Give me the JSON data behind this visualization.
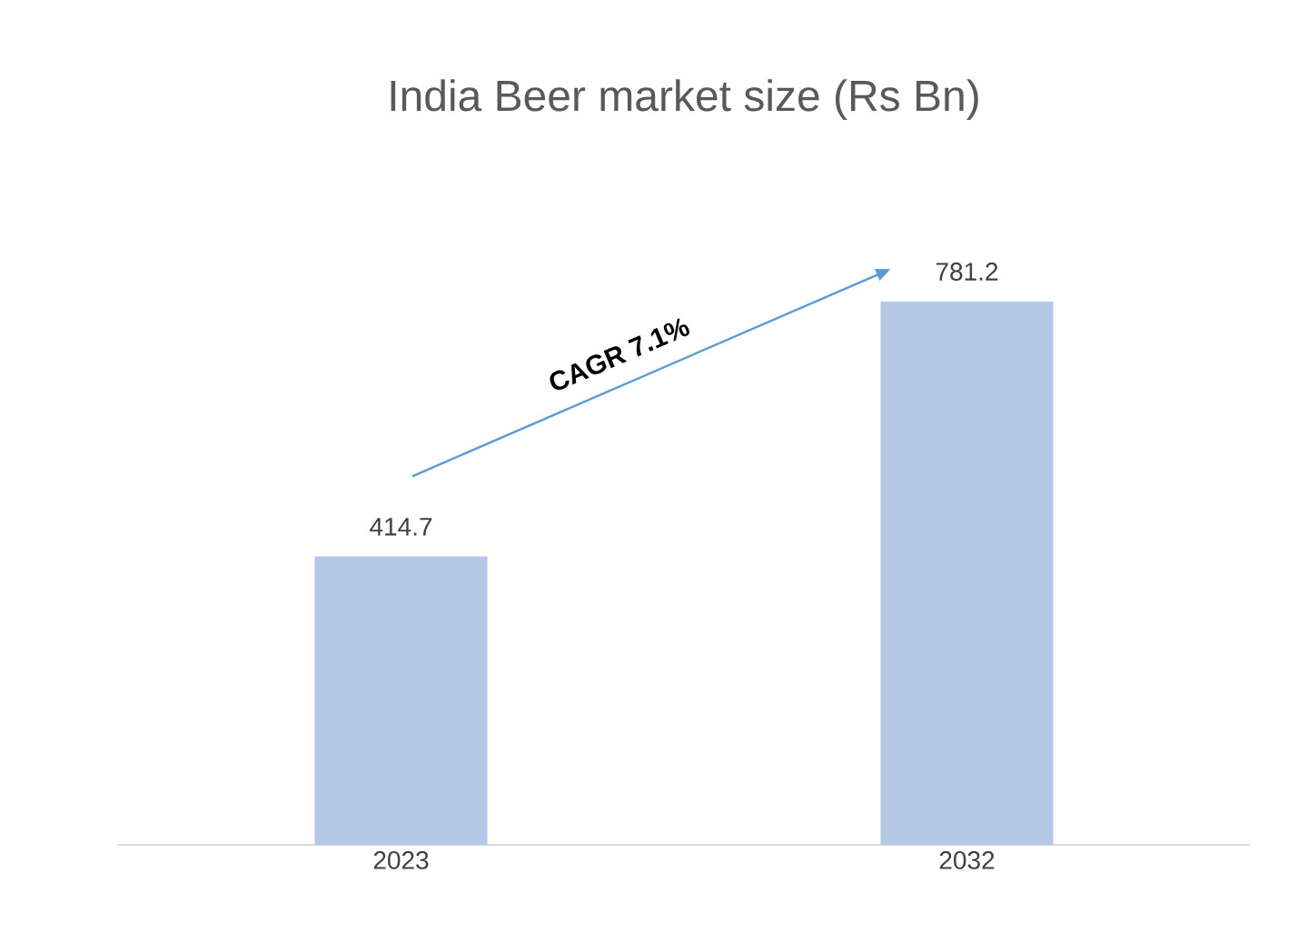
{
  "chart_data": {
    "type": "bar",
    "title": "India Beer market size (Rs Bn)",
    "categories": [
      "2023",
      "2032"
    ],
    "values": [
      414.7,
      781.2
    ],
    "color": "#b4c7e7",
    "data_labels": true,
    "tick_labels": "x",
    "annotations": [
      "CAGR 7.1%"
    ]
  }
}
